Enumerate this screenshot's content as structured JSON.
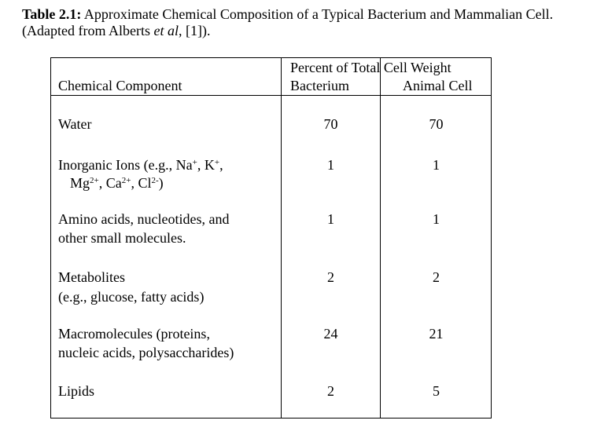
{
  "caption": {
    "label": "Table 2.1:",
    "text_before_italic": " Approximate Chemical Composition of a Typical Bacterium and Mammalian Cell. (Adapted from Alberts ",
    "italic": "et al",
    "text_after_italic": ", [1])."
  },
  "table": {
    "header": {
      "component": "Chemical Component",
      "group": "Percent of Total Cell Weight",
      "col1": "Bacterium",
      "col2": "Animal Cell"
    },
    "rows": [
      {
        "lines": [
          "Water"
        ],
        "bacterium": "70",
        "animal": "70"
      },
      {
        "lines": [
          "Inorganic Ions (e.g., Na+, K+,",
          "Mg2+, Ca2+, Cl2-)"
        ],
        "bacterium": "1",
        "animal": "1"
      },
      {
        "lines": [
          "Amino acids, nucleotides, and",
          "other small molecules."
        ],
        "bacterium": "1",
        "animal": "1"
      },
      {
        "lines": [
          "Metabolites",
          "(e.g., glucose, fatty acids)"
        ],
        "bacterium": "2",
        "animal": "2"
      },
      {
        "lines": [
          "Macromolecules (proteins,",
          "nucleic acids, polysaccharides)"
        ],
        "bacterium": "24",
        "animal": "21"
      },
      {
        "lines": [
          "Lipids"
        ],
        "bacterium": "2",
        "animal": "5"
      }
    ],
    "ions": {
      "prefix": "Inorganic Ions (e.g., Na",
      "na_charge": "+",
      "sep1": ", K",
      "k_charge": "+",
      "sep2": ",",
      "mg": "Mg",
      "mg_charge": "2+",
      "sep3": ", Ca",
      "ca_charge": "2+",
      "sep4": ", Cl",
      "cl_charge": "2-",
      "suffix": ")"
    }
  }
}
